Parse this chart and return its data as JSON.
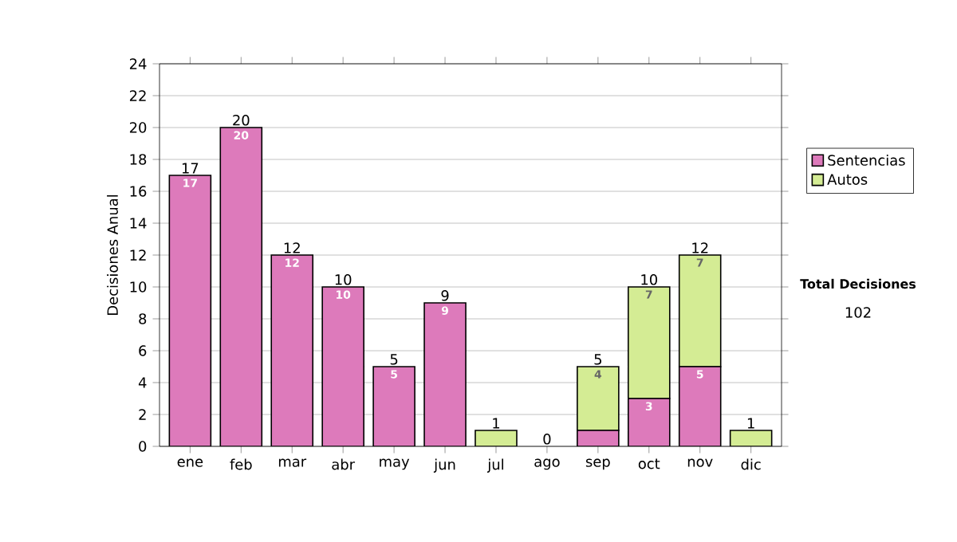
{
  "chart_data": {
    "type": "bar",
    "stacked": true,
    "ylabel": "Decisiones Anual",
    "categories": [
      "ene",
      "feb",
      "mar",
      "abr",
      "may",
      "jun",
      "jul",
      "ago",
      "sep",
      "oct",
      "nov",
      "dic"
    ],
    "series": [
      {
        "name": "Sentencias",
        "color": "#dd7abb",
        "values": [
          17,
          20,
          12,
          10,
          5,
          9,
          0,
          0,
          1,
          3,
          5,
          0
        ],
        "value_labels": [
          "17",
          "20",
          "12",
          "10",
          "5",
          "9",
          null,
          null,
          null,
          "3",
          "5",
          null
        ]
      },
      {
        "name": "Autos",
        "color": "#d4ec94",
        "values": [
          0,
          0,
          0,
          0,
          0,
          0,
          1,
          0,
          4,
          7,
          7,
          1
        ],
        "value_labels": [
          null,
          null,
          null,
          null,
          null,
          null,
          null,
          null,
          "4",
          "7",
          "7",
          null
        ]
      }
    ],
    "totals": [
      "17",
      "20",
      "12",
      "10",
      "5",
      "9",
      "1",
      "0",
      "5",
      "10",
      "12",
      "1"
    ],
    "ylim": [
      0,
      24
    ],
    "yticks": [
      0,
      2,
      4,
      6,
      8,
      10,
      12,
      14,
      16,
      18,
      20,
      22,
      24
    ],
    "grid": "y",
    "legend": "right",
    "annotations": [
      "Total Decisiones",
      "102"
    ]
  }
}
